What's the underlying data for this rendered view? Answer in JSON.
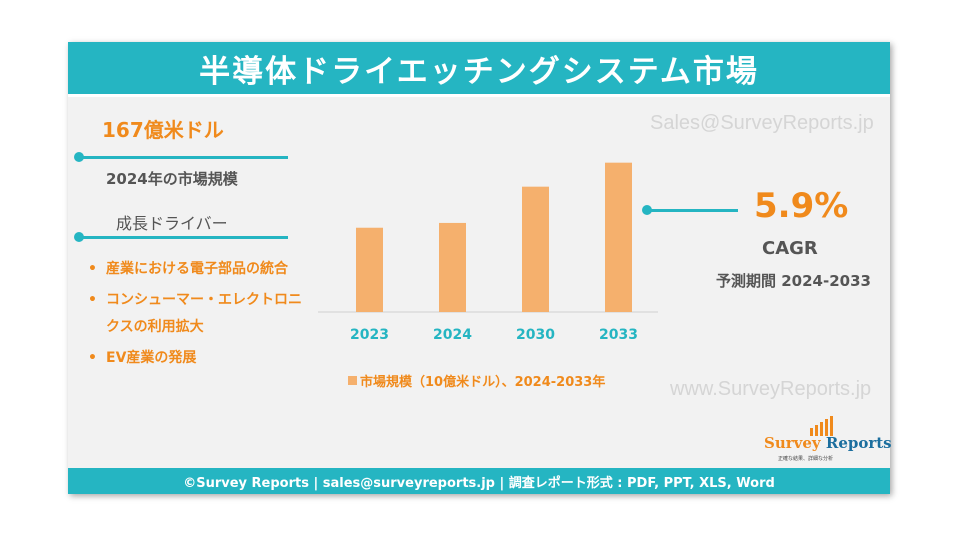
{
  "header": {
    "title": "半導体ドライエッチングシステム市場"
  },
  "market": {
    "value": "167億米ドル",
    "label": "2024年の市場規模"
  },
  "drivers": {
    "title": "成長ドライバー",
    "bullet": "•",
    "items": [
      "産業における電子部品の統合",
      "コンシューマー・エレクトロニクスの利用拡大",
      "EV産業の発展"
    ]
  },
  "watermarks": {
    "top": "Sales@SurveyReports.jp",
    "bottom": "www.SurveyReports.jp"
  },
  "cagr": {
    "value": "5.9%",
    "label": "CAGR",
    "period": "予測期間 2024-2033"
  },
  "logo": {
    "name_part1": "Survey",
    "name_part2": " Reports",
    "tagline": "正確な結果、詳細な分析"
  },
  "footer": {
    "text": "©Survey Reports | sales@surveyreports.jp |  調査レポート形式 : PDF, PPT, XLS, Word"
  },
  "colors": {
    "accent_teal": "#25b5c2",
    "accent_orange": "#f08a1c",
    "bar_fill": "#f5b06d",
    "tick_label": "#25b5c2"
  },
  "chart_data": {
    "type": "bar",
    "categories": [
      "2023",
      "2024",
      "2030",
      "2033"
    ],
    "series": [
      {
        "name": "市場規模（10億米ドル）、2024-2033年",
        "values": [
          15.8,
          16.7,
          23.5,
          28.0
        ]
      }
    ],
    "ylim": [
      0,
      30
    ],
    "grid": false,
    "legend": "bottom"
  }
}
